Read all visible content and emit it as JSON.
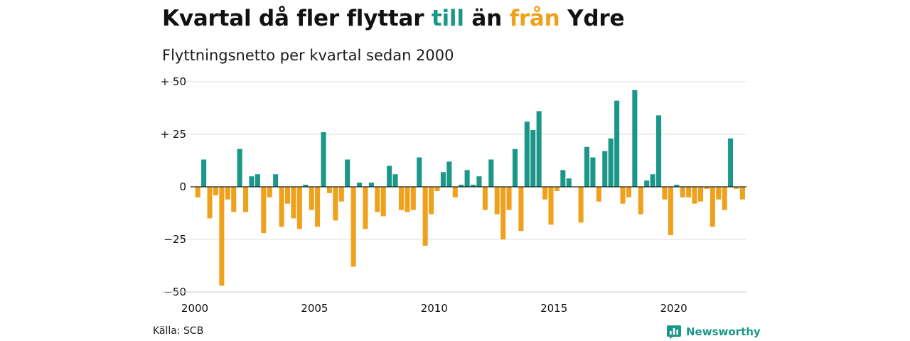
{
  "title": {
    "prefix": "Kvartal då fler flyttar ",
    "in_word": "till",
    "middle": " än ",
    "out_word": "från",
    "suffix": " Ydre"
  },
  "subtitle": "Flyttningsnetto per kvartal sedan 2000",
  "source": "Källa: SCB",
  "brand": {
    "name": "Newsworthy",
    "icon": "newsworthy-logo-icon"
  },
  "colors": {
    "positive": "#1a9788",
    "negative": "#f0a11c",
    "grid": "#dddddd",
    "text": "#111111"
  },
  "chart_data": {
    "type": "bar",
    "title": "Kvartal då fler flyttar till än från Ydre",
    "subtitle": "Flyttningsnetto per kvartal sedan 2000",
    "x_start": {
      "year": 2000,
      "quarter": 1
    },
    "x_ticks": [
      "2000",
      "2005",
      "2010",
      "2015",
      "2020"
    ],
    "y_ticks": [
      {
        "value": 50,
        "label": "+ 50"
      },
      {
        "value": 25,
        "label": "+ 25"
      },
      {
        "value": 0,
        "label": "0"
      },
      {
        "value": -25,
        "label": "−25"
      },
      {
        "value": -50,
        "label": "−50"
      }
    ],
    "ylim": [
      -50,
      50
    ],
    "grid": true,
    "values": [
      -5,
      13,
      -15,
      -4,
      -47,
      -6,
      -12,
      18,
      -12,
      5,
      6,
      -22,
      -5,
      6,
      -19,
      -8,
      -15,
      -20,
      1,
      -11,
      -19,
      26,
      -3,
      -16,
      -7,
      13,
      -38,
      2,
      -20,
      2,
      -12,
      -14,
      10,
      6,
      -11,
      -12,
      -11,
      14,
      -28,
      -13,
      -2,
      7,
      12,
      -5,
      1,
      8,
      1,
      5,
      -11,
      13,
      -13,
      -25,
      -11,
      18,
      -21,
      31,
      27,
      36,
      -6,
      -18,
      -2,
      8,
      4,
      0,
      -17,
      19,
      14,
      -7,
      17,
      23,
      41,
      -8,
      -5,
      46,
      -13,
      3,
      6,
      34,
      -6,
      -23,
      1,
      -5,
      -5,
      -8,
      -7,
      -1,
      -19,
      -6,
      -11,
      23,
      -1,
      -6
    ]
  }
}
